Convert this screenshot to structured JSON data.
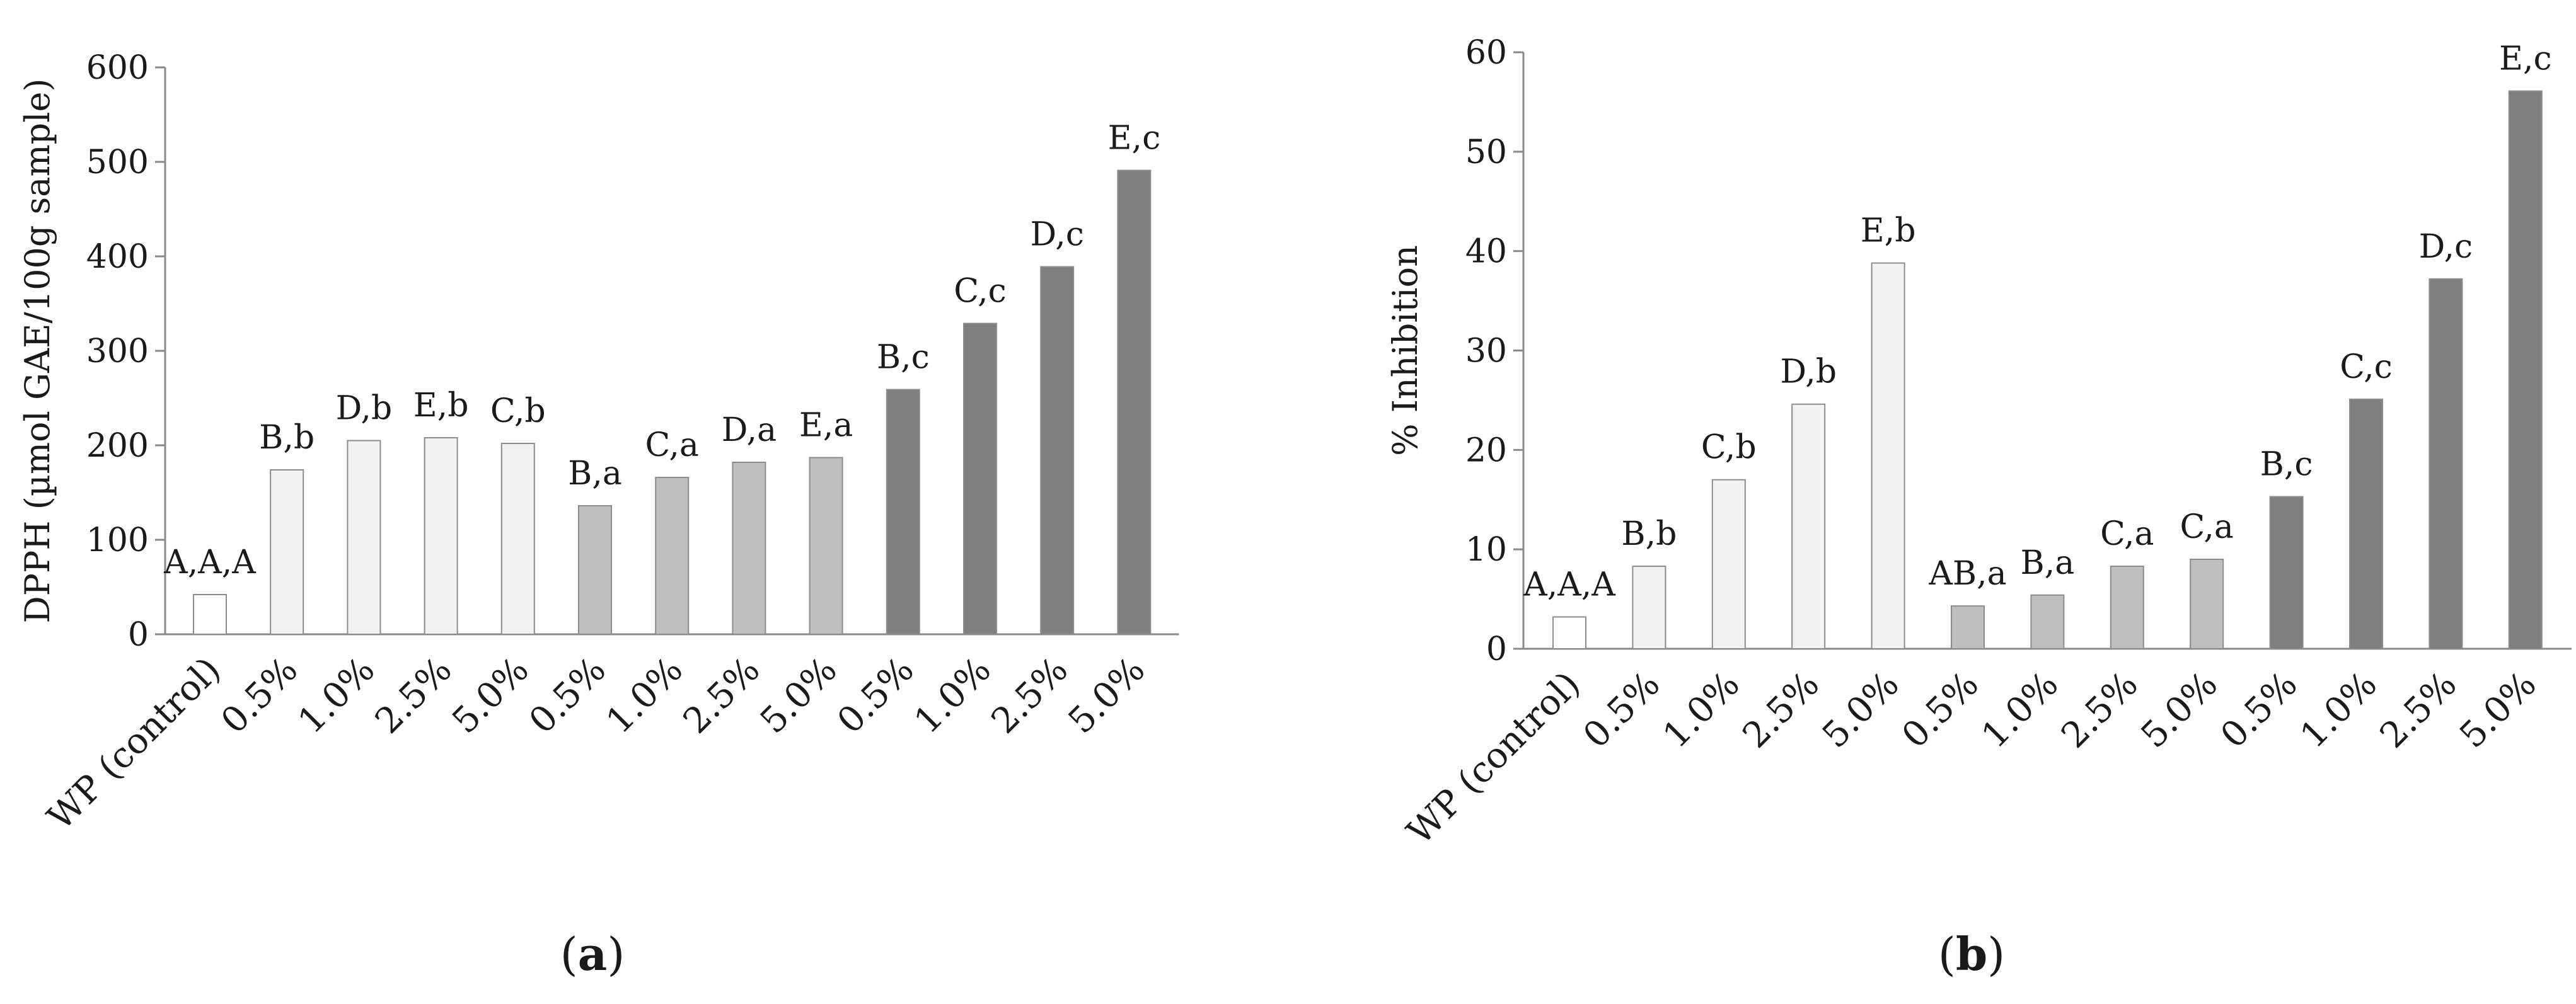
{
  "colors": {
    "control": "#ffffff",
    "group1": "#f2f2f2",
    "group2": "#bfbfbf",
    "group3": "#7f7f7f"
  },
  "chart_data": [
    {
      "type": "bar",
      "panel_label": "a",
      "ylabel": "DPPH (µmol GAE/100g sample)",
      "ylim": [
        0,
        600
      ],
      "yticks": [
        0,
        100,
        200,
        300,
        400,
        500,
        600
      ],
      "categories": [
        "WP (control)",
        "0.5%",
        "1.0%",
        "2.5%",
        "5.0%",
        "0.5%",
        "1.0%",
        "2.5%",
        "5.0%",
        "0.5%",
        "1.0%",
        "2.5%",
        "5.0%"
      ],
      "groups": [
        "control",
        "group1",
        "group1",
        "group1",
        "group1",
        "group2",
        "group2",
        "group2",
        "group2",
        "group3",
        "group3",
        "group3",
        "group3"
      ],
      "values": [
        42,
        174,
        205,
        208,
        202,
        136,
        166,
        182,
        187,
        259,
        329,
        389,
        491
      ],
      "labels": [
        "A,A,A",
        "B,b",
        "D,b",
        "E,b",
        "C,b",
        "B,a",
        "C,a",
        "D,a",
        "E,a",
        "B,c",
        "C,c",
        "D,c",
        "E,c"
      ]
    },
    {
      "type": "bar",
      "panel_label": "b",
      "ylabel": "% Inhibition",
      "ylim": [
        0,
        60
      ],
      "yticks": [
        0,
        10,
        20,
        30,
        40,
        50,
        60
      ],
      "categories": [
        "WP (control)",
        "0.5%",
        "1.0%",
        "2.5%",
        "5.0%",
        "0.5%",
        "1.0%",
        "2.5%",
        "5.0%",
        "0.5%",
        "1.0%",
        "2.5%",
        "5.0%"
      ],
      "groups": [
        "control",
        "group1",
        "group1",
        "group1",
        "group1",
        "group2",
        "group2",
        "group2",
        "group2",
        "group3",
        "group3",
        "group3",
        "group3"
      ],
      "values": [
        3.2,
        8.3,
        17.0,
        24.6,
        38.8,
        4.3,
        5.4,
        8.3,
        9.0,
        15.3,
        25.1,
        37.2,
        56.1
      ],
      "labels": [
        "A,A,A",
        "B,b",
        "C,b",
        "D,b",
        "E,b",
        "AB,a",
        "B,a",
        "C,a",
        "C,a",
        "B,c",
        "C,c",
        "D,c",
        "E,c"
      ]
    }
  ]
}
